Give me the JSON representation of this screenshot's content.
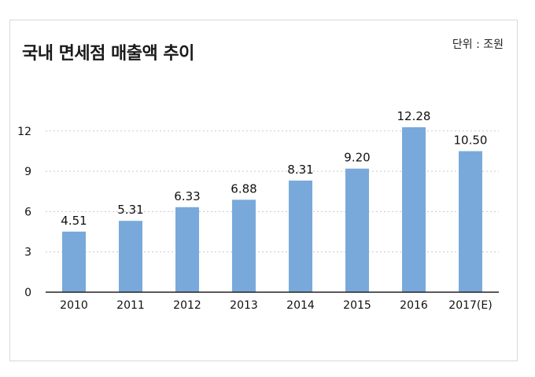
{
  "header": {
    "title": "국내 면세점 매출액 추이",
    "unit": "단위 : 조원"
  },
  "colors": {
    "bar": "#79a9db",
    "grid": "#c8c8c8",
    "axis": "#222222"
  },
  "chart_data": {
    "type": "bar",
    "title": "국내 면세점 매출액 추이",
    "unit_label": "단위 : 조원",
    "xlabel": "",
    "ylabel": "",
    "categories": [
      "2010",
      "2011",
      "2012",
      "2013",
      "2014",
      "2015",
      "2016",
      "2017(E)"
    ],
    "values": [
      4.51,
      5.31,
      6.33,
      6.88,
      8.31,
      9.2,
      12.28,
      10.5
    ],
    "value_labels": [
      "4.51",
      "5.31",
      "6.33",
      "6.88",
      "8.31",
      "9.20",
      "12.28",
      "10.50"
    ],
    "yticks": [
      "0",
      "3",
      "6",
      "9",
      "12"
    ],
    "ylim": [
      0,
      13
    ],
    "grid": true
  }
}
